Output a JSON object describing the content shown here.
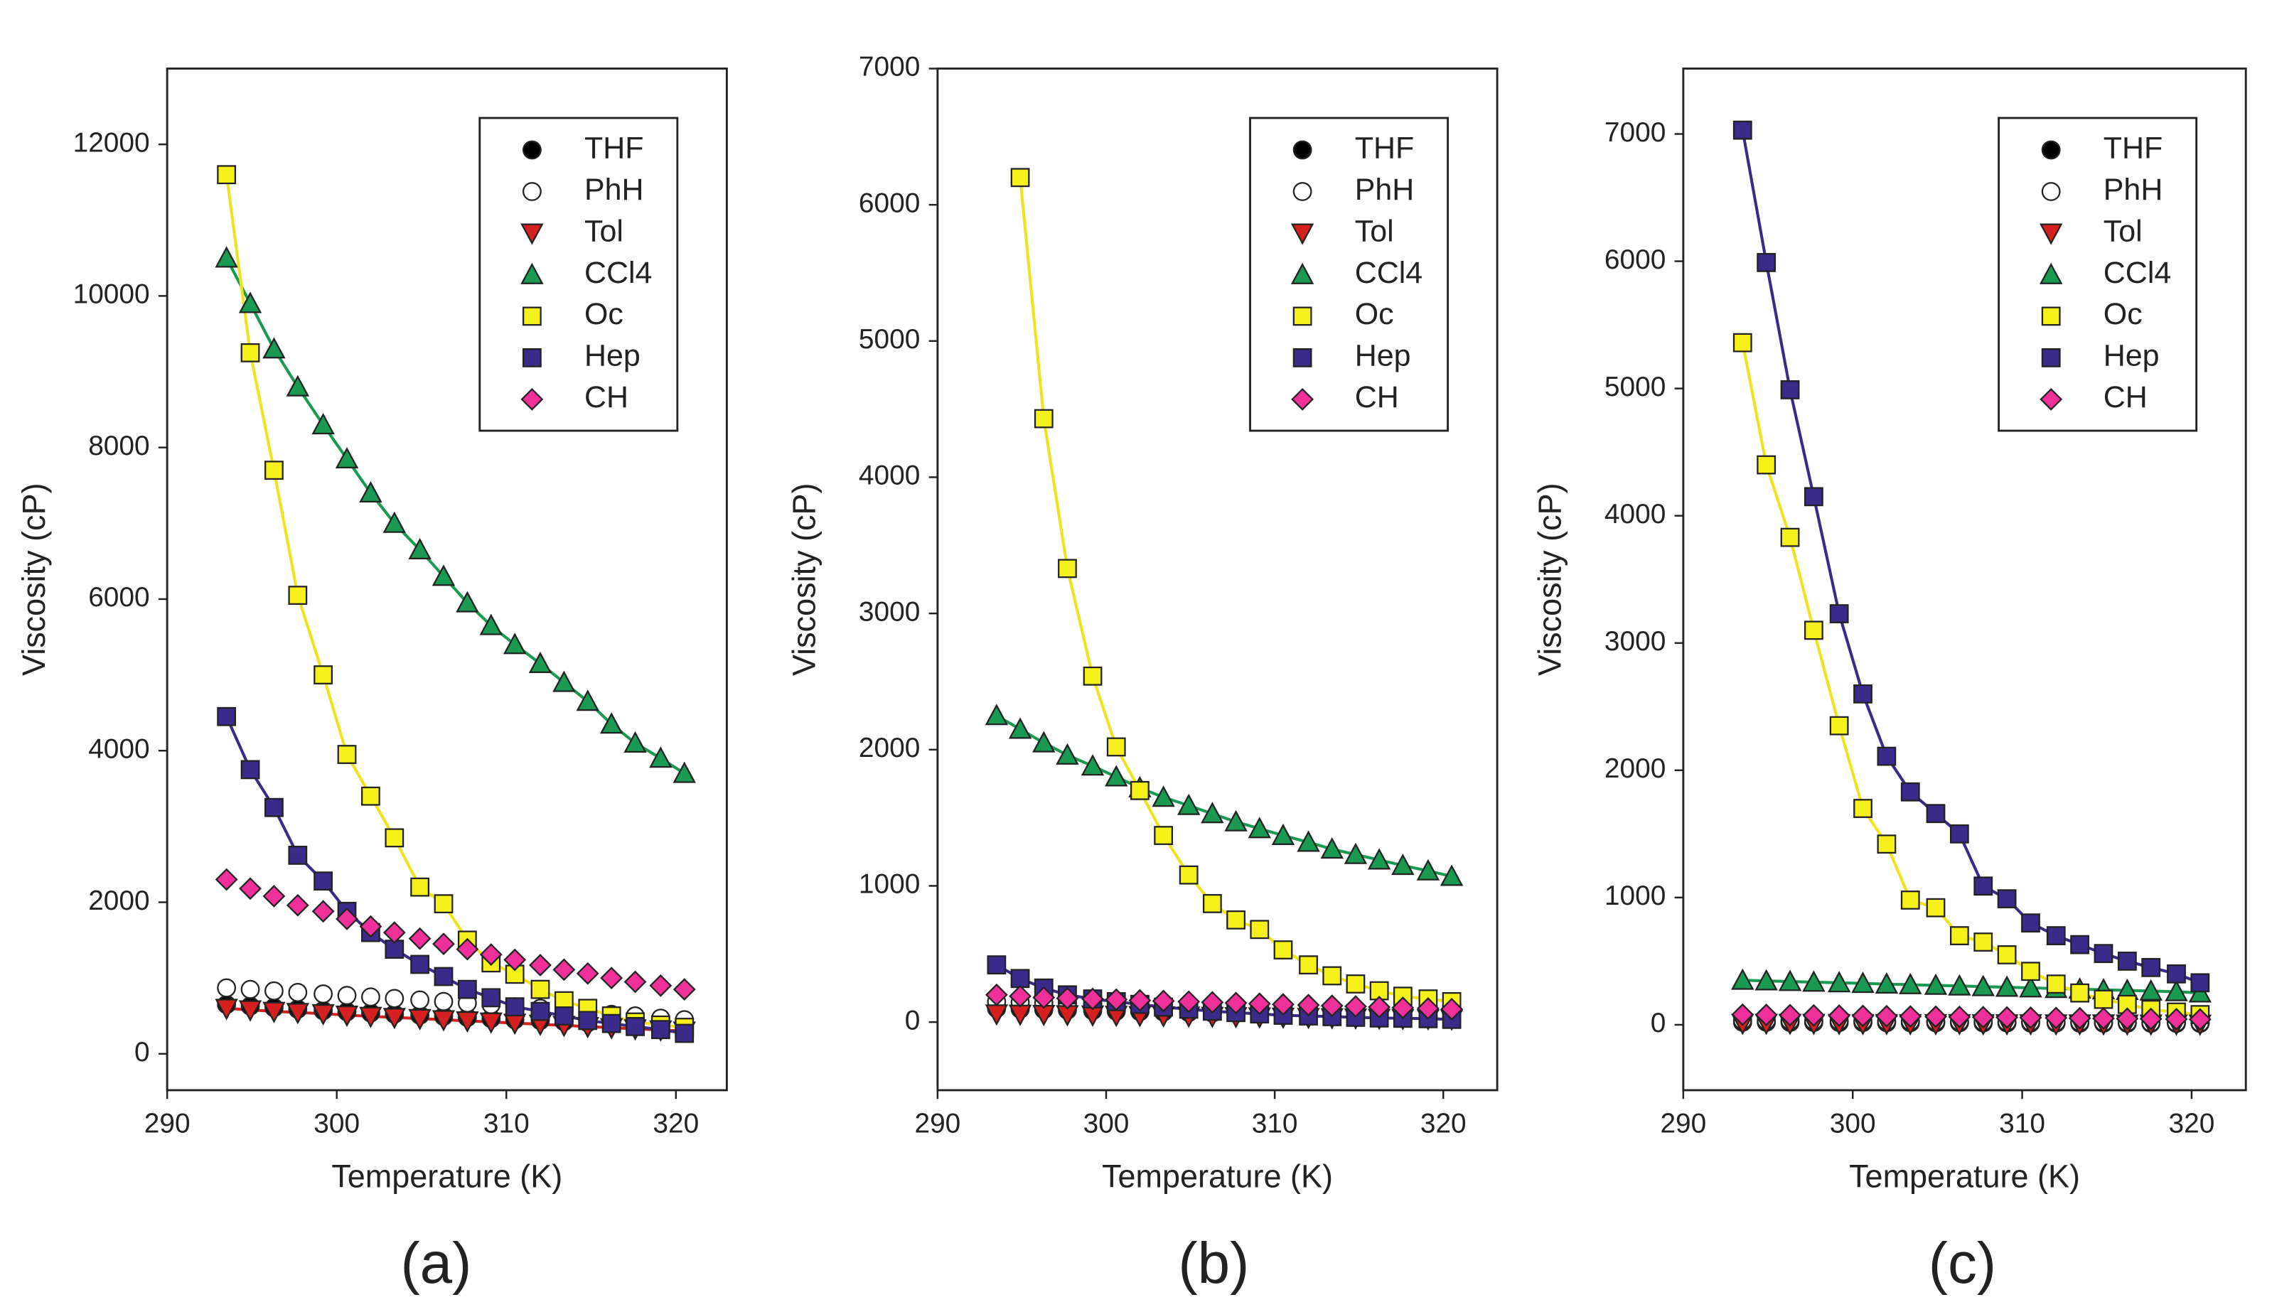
{
  "chart_data": [
    {
      "type": "scatter",
      "label": "(a)",
      "xlabel": "Temperature (K)",
      "ylabel": "Viscosity (cP)",
      "xlim": [
        290,
        323
      ],
      "ylim": [
        -480,
        13000
      ],
      "xticks": [
        290,
        300,
        310,
        320
      ],
      "yticks": [
        0,
        2000,
        4000,
        6000,
        8000,
        10000,
        12000
      ],
      "legend": "upper right",
      "x": [
        293.5,
        294.9,
        296.3,
        297.7,
        299.2,
        300.6,
        302.0,
        303.4,
        304.9,
        306.3,
        307.7,
        309.1,
        310.5,
        312.0,
        313.4,
        314.8,
        316.2,
        317.6,
        319.1,
        320.5
      ],
      "series": [
        {
          "name": "THF",
          "marker": "circle",
          "color": "#000000",
          "fit": false,
          "values": [
            650,
            630,
            610,
            590,
            570,
            555,
            540,
            525,
            510,
            495,
            480,
            465,
            450,
            440,
            425,
            410,
            395,
            380,
            365,
            350
          ]
        },
        {
          "name": "PhH",
          "marker": "circle",
          "color": "#ffffff",
          "fit": false,
          "values": [
            870,
            850,
            830,
            810,
            790,
            770,
            750,
            730,
            710,
            690,
            670,
            650,
            620,
            600,
            570,
            550,
            520,
            500,
            470,
            450
          ]
        },
        {
          "name": "Tol",
          "marker": "triangle-down",
          "color": "#d62020",
          "fit": true,
          "values": [
            600,
            580,
            560,
            545,
            530,
            510,
            495,
            480,
            465,
            450,
            435,
            420,
            405,
            390,
            375,
            360,
            345,
            330,
            315,
            300
          ]
        },
        {
          "name": "CCl4",
          "marker": "triangle-up",
          "color": "#1a9a50",
          "fit": true,
          "values": [
            10500,
            9900,
            9300,
            8800,
            8300,
            7850,
            7400,
            7000,
            6650,
            6300,
            5950,
            5650,
            5400,
            5150,
            4900,
            4650,
            4350,
            4100,
            3900,
            3700
          ]
        },
        {
          "name": "Oc",
          "marker": "square",
          "color": "#f5ef1a",
          "fit": true,
          "values": [
            11600,
            9250,
            7700,
            6050,
            5000,
            3950,
            3400,
            2850,
            2200,
            1980,
            1500,
            1200,
            1050,
            850,
            700,
            600,
            500,
            420,
            380,
            350
          ]
        },
        {
          "name": "Hep",
          "marker": "square",
          "color": "#3a2a8a",
          "fit": true,
          "values": [
            4450,
            3750,
            3250,
            2620,
            2280,
            1880,
            1600,
            1380,
            1180,
            1020,
            850,
            740,
            620,
            560,
            500,
            440,
            400,
            360,
            320,
            270
          ]
        },
        {
          "name": "CH",
          "marker": "diamond",
          "color": "#f0309a",
          "fit": false,
          "values": [
            2300,
            2180,
            2080,
            1960,
            1880,
            1780,
            1680,
            1600,
            1520,
            1450,
            1380,
            1310,
            1240,
            1170,
            1110,
            1060,
            1000,
            950,
            900,
            850
          ]
        }
      ]
    },
    {
      "type": "scatter",
      "label": "(b)",
      "xlabel": "Temperature (K)",
      "ylabel": "Viscosity (cP)",
      "xlim": [
        290,
        323.2
      ],
      "ylim": [
        -500,
        7000
      ],
      "xticks": [
        290,
        300,
        310,
        320
      ],
      "yticks": [
        0,
        1000,
        2000,
        3000,
        4000,
        5000,
        6000,
        7000
      ],
      "legend": "upper right",
      "x": [
        293.5,
        294.9,
        296.3,
        297.7,
        299.2,
        300.6,
        302.0,
        303.4,
        304.9,
        306.3,
        307.7,
        309.1,
        310.5,
        312.0,
        313.4,
        314.8,
        316.2,
        317.6,
        319.1,
        320.5
      ],
      "series": [
        {
          "name": "THF",
          "marker": "circle",
          "color": "#000000",
          "fit": false,
          "values": [
            100,
            96,
            92,
            88,
            84,
            80,
            77,
            74,
            70,
            67,
            64,
            61,
            58,
            55,
            52,
            49,
            46,
            43,
            40,
            38
          ]
        },
        {
          "name": "PhH",
          "marker": "circle",
          "color": "#ffffff",
          "fit": false,
          "values": [
            150,
            145,
            140,
            135,
            130,
            125,
            120,
            115,
            110,
            105,
            100,
            96,
            92,
            88,
            84,
            80,
            76,
            72,
            68,
            64
          ]
        },
        {
          "name": "Tol",
          "marker": "triangle-down",
          "color": "#d62020",
          "fit": false,
          "values": [
            60,
            58,
            56,
            54,
            52,
            50,
            48,
            46,
            44,
            42,
            40,
            38,
            36,
            34,
            32,
            30,
            28,
            26,
            24,
            22
          ]
        },
        {
          "name": "CCl4",
          "marker": "triangle-up",
          "color": "#1a9a50",
          "fit": true,
          "values": [
            2250,
            2150,
            2050,
            1960,
            1880,
            1800,
            1720,
            1650,
            1590,
            1530,
            1470,
            1420,
            1370,
            1320,
            1270,
            1230,
            1190,
            1150,
            1110,
            1070
          ]
        },
        {
          "name": "Oc",
          "marker": "square",
          "color": "#f5ef1a",
          "fit": true,
          "values": [
            null,
            6200,
            4430,
            3330,
            2540,
            2020,
            1700,
            1370,
            1080,
            870,
            750,
            680,
            530,
            420,
            340,
            280,
            230,
            190,
            170,
            150
          ]
        },
        {
          "name": "Hep",
          "marker": "square",
          "color": "#3a2a8a",
          "fit": true,
          "values": [
            420,
            320,
            250,
            200,
            170,
            150,
            130,
            110,
            95,
            80,
            70,
            60,
            50,
            45,
            40,
            35,
            30,
            28,
            25,
            20
          ]
        },
        {
          "name": "CH",
          "marker": "diamond",
          "color": "#f0309a",
          "fit": false,
          "values": [
            200,
            190,
            180,
            175,
            170,
            165,
            160,
            155,
            150,
            145,
            140,
            135,
            130,
            125,
            120,
            115,
            110,
            105,
            100,
            95
          ]
        }
      ]
    },
    {
      "type": "scatter",
      "label": "(c)",
      "xlabel": "Temperature (K)",
      "ylabel": "Viscosity (cP)",
      "xlim": [
        290,
        323.2
      ],
      "ylim": [
        -514,
        7514
      ],
      "xticks": [
        290,
        300,
        310,
        320
      ],
      "yticks": [
        0,
        1000,
        2000,
        3000,
        4000,
        5000,
        6000,
        7000
      ],
      "legend": "upper right",
      "x": [
        293.5,
        294.9,
        296.3,
        297.7,
        299.2,
        300.6,
        302.0,
        303.4,
        304.9,
        306.3,
        307.7,
        309.1,
        310.5,
        312.0,
        313.4,
        314.8,
        316.2,
        317.6,
        319.1,
        320.5
      ],
      "series": [
        {
          "name": "THF",
          "marker": "circle",
          "color": "#000000",
          "fit": false,
          "values": [
            20,
            20,
            19,
            19,
            18,
            18,
            17,
            17,
            16,
            16,
            15,
            15,
            14,
            14,
            13,
            13,
            12,
            12,
            11,
            11
          ]
        },
        {
          "name": "PhH",
          "marker": "circle",
          "color": "#ffffff",
          "fit": false,
          "values": [
            35,
            34,
            33,
            32,
            31,
            30,
            29,
            28,
            27,
            26,
            25,
            24,
            23,
            22,
            21,
            20,
            19,
            18,
            17,
            16
          ]
        },
        {
          "name": "Tol",
          "marker": "triangle-down",
          "color": "#d62020",
          "fit": false,
          "values": [
            12,
            12,
            11,
            11,
            10,
            10,
            10,
            9,
            9,
            9,
            8,
            8,
            8,
            7,
            7,
            7,
            6,
            6,
            6,
            5
          ]
        },
        {
          "name": "CCl4",
          "marker": "triangle-up",
          "color": "#1a9a50",
          "fit": true,
          "values": [
            350,
            345,
            340,
            335,
            330,
            325,
            320,
            315,
            310,
            305,
            300,
            295,
            290,
            285,
            280,
            275,
            270,
            265,
            260,
            250
          ]
        },
        {
          "name": "Oc",
          "marker": "square",
          "color": "#f5ef1a",
          "fit": true,
          "values": [
            5360,
            4400,
            3830,
            3100,
            2350,
            1700,
            1420,
            980,
            920,
            700,
            650,
            550,
            420,
            320,
            250,
            200,
            160,
            120,
            100,
            80
          ]
        },
        {
          "name": "Hep",
          "marker": "square",
          "color": "#3a2a8a",
          "fit": true,
          "values": [
            7030,
            5990,
            4990,
            4150,
            3230,
            2600,
            2110,
            1830,
            1660,
            1500,
            1090,
            990,
            800,
            700,
            630,
            560,
            500,
            450,
            400,
            330
          ]
        },
        {
          "name": "CH",
          "marker": "diamond",
          "color": "#f0309a",
          "fit": false,
          "values": [
            80,
            78,
            76,
            74,
            72,
            70,
            68,
            66,
            64,
            62,
            60,
            58,
            56,
            54,
            52,
            50,
            48,
            46,
            44,
            42
          ]
        }
      ]
    }
  ]
}
